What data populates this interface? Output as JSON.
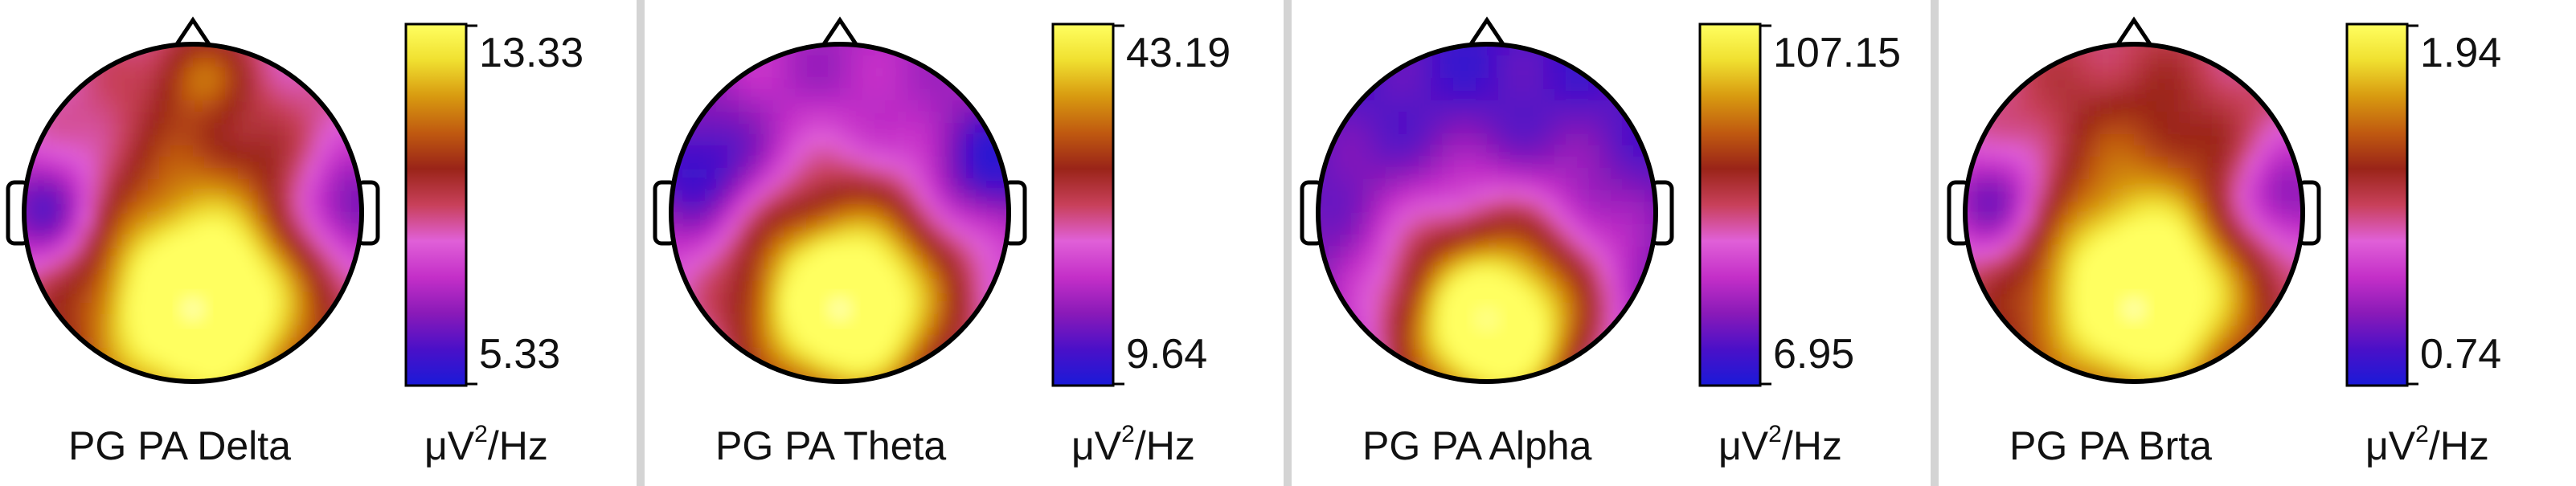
{
  "panels": [
    {
      "title": "PG PA Delta",
      "max": "13.33",
      "min": "5.33",
      "unit_prefix": "μV",
      "unit_exp": "2",
      "unit_suffix": "/Hz",
      "pattern": "delta"
    },
    {
      "title": "PG PA Theta",
      "max": "43.19",
      "min": "9.64",
      "unit_prefix": "μV",
      "unit_exp": "2",
      "unit_suffix": "/Hz",
      "pattern": "theta"
    },
    {
      "title": "PG PA Alpha",
      "max": "107.15",
      "min": "6.95",
      "unit_prefix": "μV",
      "unit_exp": "2",
      "unit_suffix": "/Hz",
      "pattern": "alpha"
    },
    {
      "title": "PG PA Brta",
      "max": "1.94",
      "min": "0.74",
      "unit_prefix": "μV",
      "unit_exp": "2",
      "unit_suffix": "/Hz",
      "pattern": "beta"
    }
  ],
  "colormap": [
    "#1a1ad8",
    "#4a10c8",
    "#8a1ab8",
    "#c42fc8",
    "#e060d8",
    "#c8405a",
    "#9a2418",
    "#c05a10",
    "#d89a10",
    "#f0e030",
    "#ffff60"
  ]
}
